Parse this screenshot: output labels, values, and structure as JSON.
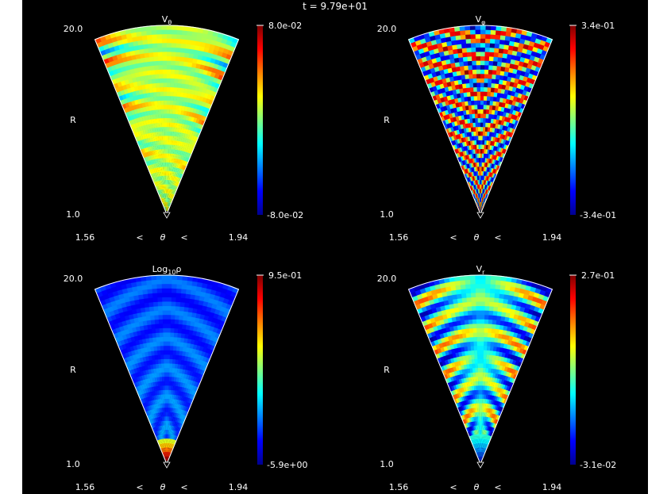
{
  "figure": {
    "time_label": "t = 9.79e+01"
  },
  "chart_data": [
    {
      "type": "heatmap",
      "title": "V_θ",
      "title_main": "V",
      "title_sub": "θ",
      "r_range": [
        1.0,
        20.0
      ],
      "theta_range": [
        1.56,
        1.94
      ],
      "r_labels": [
        "20.0",
        "R",
        "1.0"
      ],
      "theta_labels": [
        "1.56",
        "<",
        "θ",
        "<",
        "1.94"
      ],
      "colorbar": {
        "max": "8.0e-02",
        "min": "-8.0e-02"
      },
      "colormap": "jet",
      "pattern": "horizontal-bands"
    },
    {
      "type": "heatmap",
      "title": "V_φ",
      "title_main": "V",
      "title_sub": "φ",
      "r_range": [
        1.0,
        20.0
      ],
      "theta_range": [
        1.56,
        1.94
      ],
      "r_labels": [
        "20.0",
        "R",
        "1.0"
      ],
      "theta_labels": [
        "1.56",
        "<",
        "θ",
        "<",
        "1.94"
      ],
      "colorbar": {
        "max": "3.4e-01",
        "min": "-3.4e-01"
      },
      "colormap": "jet",
      "pattern": "chevron-bands"
    },
    {
      "type": "heatmap",
      "title": "Log10 ρ",
      "title_main": "Log",
      "title_sub": "10",
      "title_tail": "ρ",
      "r_range": [
        1.0,
        20.0
      ],
      "theta_range": [
        1.56,
        1.94
      ],
      "r_labels": [
        "20.0",
        "R",
        "1.0"
      ],
      "theta_labels": [
        "1.56",
        "<",
        "θ",
        "<",
        "1.94"
      ],
      "colorbar": {
        "max": "9.5e-01",
        "min": "-5.9e+00"
      },
      "colormap": "jet",
      "pattern": "density"
    },
    {
      "type": "heatmap",
      "title": "V_r",
      "title_main": "V",
      "title_sub": "r",
      "r_range": [
        1.0,
        20.0
      ],
      "theta_range": [
        1.56,
        1.94
      ],
      "r_labels": [
        "20.0",
        "R",
        "1.0"
      ],
      "theta_labels": [
        "1.56",
        "<",
        "θ",
        "<",
        "1.94"
      ],
      "colorbar": {
        "max": "2.7e-01",
        "min": "-3.1e-02"
      },
      "colormap": "jet",
      "pattern": "radial-velocity"
    }
  ]
}
